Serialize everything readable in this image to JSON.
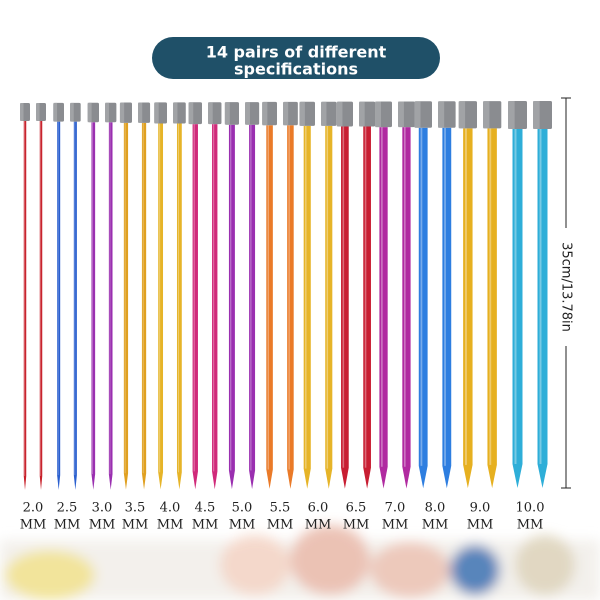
{
  "title": [
    "14 pairs of different",
    "specifications"
  ],
  "length": "35cm/13.78in",
  "pairs": [
    {
      "size": "2.0",
      "unit": "MM",
      "color": "#c8202a"
    },
    {
      "size": "2.5",
      "unit": "MM",
      "color": "#2a5fcf"
    },
    {
      "size": "3.0",
      "unit": "MM",
      "color": "#9a2fb0"
    },
    {
      "size": "3.5",
      "unit": "MM",
      "color": "#e0a020"
    },
    {
      "size": "4.0",
      "unit": "MM",
      "color": "#e6b428"
    },
    {
      "size": "4.5",
      "unit": "MM",
      "color": "#d02a7a"
    },
    {
      "size": "5.0",
      "unit": "MM",
      "color": "#9a2fb0"
    },
    {
      "size": "5.5",
      "unit": "MM",
      "color": "#ea7a28"
    },
    {
      "size": "6.0",
      "unit": "MM",
      "color": "#e6b428"
    },
    {
      "size": "6.5",
      "unit": "MM",
      "color": "#c81e32"
    },
    {
      "size": "7.0",
      "unit": "MM",
      "color": "#b02aa0"
    },
    {
      "size": "8.0",
      "unit": "MM",
      "color": "#2e7ee0"
    },
    {
      "size": "9.0",
      "unit": "MM",
      "color": "#e6b020"
    },
    {
      "size": "10.0",
      "unit": "MM",
      "color": "#2eaed8"
    }
  ]
}
